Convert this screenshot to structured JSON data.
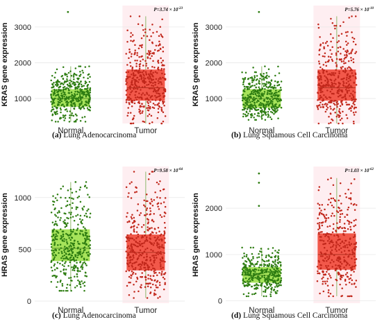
{
  "colors": {
    "normal_fill": "#a6e35a",
    "normal_points": "#2e7d12",
    "tumor_fill": "#f2584a",
    "tumor_points": "#c1271b",
    "tumor_bg": "#fde3e8",
    "whisker": "#8fb86a"
  },
  "chart_data": [
    {
      "type": "box",
      "panel_label": "(a)",
      "caption": "Lung Adenocarcinoma",
      "ylabel": "KRAS gene expression",
      "categories": [
        "Normal",
        "Tumor"
      ],
      "p_value": "P=3.74 × 10",
      "p_exponent": "-23",
      "ylim": [
        300,
        3600
      ],
      "yticks": [
        1000,
        2000,
        3000
      ],
      "grid": true,
      "series": [
        {
          "category": "Normal",
          "min": 350,
          "q1": 780,
          "median": 1000,
          "q3": 1250,
          "max": 1900,
          "n_points": 420
        },
        {
          "category": "Tumor",
          "min": 300,
          "q1": 950,
          "median": 1300,
          "q3": 1800,
          "max": 3300,
          "n_points": 420
        }
      ],
      "outliers": [
        {
          "category": "Normal",
          "y": 3420
        }
      ]
    },
    {
      "type": "box",
      "panel_label": "(b)",
      "caption": "Lung Squamous Cell Carcinoma",
      "ylabel": "KRAS gene expression",
      "categories": [
        "Normal",
        "Tumor"
      ],
      "p_value": "P=5.76 × 10",
      "p_exponent": "-10",
      "ylim": [
        300,
        3600
      ],
      "yticks": [
        1000,
        2000,
        3000
      ],
      "grid": true,
      "series": [
        {
          "category": "Normal",
          "min": 400,
          "q1": 750,
          "median": 1000,
          "q3": 1250,
          "max": 1900,
          "n_points": 400
        },
        {
          "category": "Tumor",
          "min": 300,
          "q1": 950,
          "median": 1300,
          "q3": 1800,
          "max": 3300,
          "n_points": 400
        }
      ],
      "outliers": [
        {
          "category": "Normal",
          "y": 3420
        }
      ]
    },
    {
      "type": "box",
      "panel_label": "(c)",
      "caption": "Lung Adenocarcinoma",
      "ylabel": "HRAS gene expression",
      "categories": [
        "Normal",
        "Tumor"
      ],
      "p_value": "P=9.58 × 10",
      "p_exponent": "-04",
      "ylim": [
        -20,
        1300
      ],
      "yticks": [
        0,
        500,
        1000
      ],
      "grid": true,
      "series": [
        {
          "category": "Normal",
          "min": 100,
          "q1": 390,
          "median": 510,
          "q3": 690,
          "max": 1150,
          "n_points": 420
        },
        {
          "category": "Tumor",
          "min": 30,
          "q1": 300,
          "median": 470,
          "q3": 640,
          "max": 1250,
          "n_points": 420
        }
      ],
      "outliers": []
    },
    {
      "type": "box",
      "panel_label": "(d)",
      "caption": "Lung Squamous Cell Carcinoma",
      "ylabel": "HRAS gene expression",
      "categories": [
        "Normal",
        "Tumor"
      ],
      "p_value": "P=1.03 × 10",
      "p_exponent": "-62",
      "ylim": [
        -50,
        2900
      ],
      "yticks": [
        0,
        1000,
        2000
      ],
      "grid": true,
      "series": [
        {
          "category": "Normal",
          "min": 100,
          "q1": 400,
          "median": 550,
          "q3": 720,
          "max": 1150,
          "n_points": 380
        },
        {
          "category": "Tumor",
          "min": 100,
          "q1": 680,
          "median": 1000,
          "q3": 1450,
          "max": 2650,
          "n_points": 380
        }
      ],
      "outliers": [
        {
          "category": "Normal",
          "y": 2050
        },
        {
          "category": "Normal",
          "y": 2550
        },
        {
          "category": "Normal",
          "y": 2750
        }
      ]
    }
  ]
}
